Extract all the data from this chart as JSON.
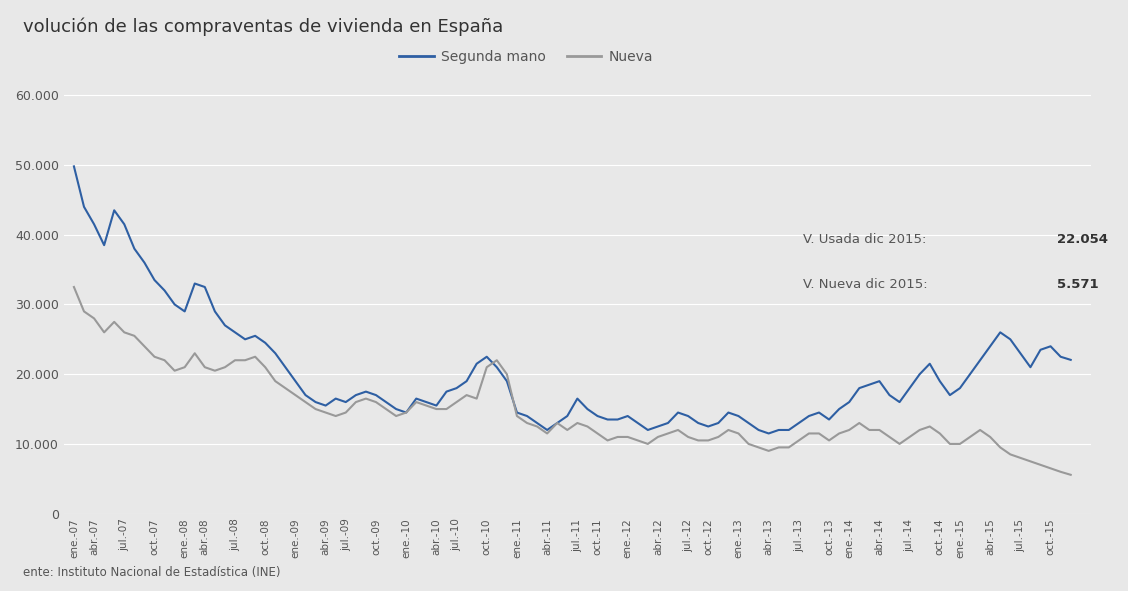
{
  "title": "volución de las compraventas de vivienda en España",
  "source_text": "ente: Instituto Nacional de Estadística (INE)",
  "bg_color": "#e8e8e8",
  "plot_bg_color": "#e8e8e8",
  "segunda_mano_color": "#2e5fa3",
  "nueva_color": "#999999",
  "ylim": [
    0,
    65000
  ],
  "yticks": [
    0,
    10000,
    20000,
    30000,
    40000,
    50000,
    60000
  ],
  "ytick_labels": [
    "0",
    "10.000",
    "20.000",
    "30.000",
    "40.000",
    "50.000",
    "60.000"
  ],
  "annotation_usada": "V. Usada dic 2015: ",
  "annotation_usada_bold": "22.054",
  "annotation_nueva": "V. Nueva dic 2015: ",
  "annotation_nueva_bold": "5.571",
  "legend_segunda": "Segunda mano",
  "legend_nueva": "Nueva",
  "segunda_mano": [
    49800,
    44000,
    41500,
    38500,
    43500,
    41500,
    38000,
    36000,
    33500,
    32000,
    30000,
    29000,
    33000,
    32500,
    29000,
    27000,
    26000,
    25000,
    25500,
    24500,
    23000,
    21000,
    19000,
    17000,
    16000,
    15500,
    16500,
    16000,
    17000,
    17500,
    17000,
    16000,
    15000,
    14500,
    16500,
    16000,
    15500,
    17500,
    18000,
    19000,
    21500,
    22500,
    21000,
    19000,
    14500,
    14000,
    13000,
    12000,
    13000,
    14000,
    16500,
    15000,
    14000,
    13500,
    13500,
    14000,
    13000,
    12000,
    12500,
    13000,
    14500,
    14000,
    13000,
    12500,
    13000,
    14500,
    14000,
    13000,
    12000,
    11500,
    12000,
    12000,
    13000,
    14000,
    14500,
    13500,
    15000,
    16000,
    18000,
    18500,
    19000,
    17000,
    16000,
    18000,
    20000,
    21500,
    19000,
    17000,
    18000,
    20000,
    22000,
    24000,
    26000,
    25000,
    23000,
    21000,
    23500,
    24000,
    22500,
    22054
  ],
  "nueva": [
    32500,
    29000,
    28000,
    26000,
    27500,
    26000,
    25500,
    24000,
    22500,
    22000,
    20500,
    21000,
    23000,
    21000,
    20500,
    21000,
    22000,
    22000,
    22500,
    21000,
    19000,
    18000,
    17000,
    16000,
    15000,
    14500,
    14000,
    14500,
    16000,
    16500,
    16000,
    15000,
    14000,
    14500,
    16000,
    15500,
    15000,
    15000,
    16000,
    17000,
    16500,
    21000,
    22000,
    20000,
    14000,
    13000,
    12500,
    11500,
    13000,
    12000,
    13000,
    12500,
    11500,
    10500,
    11000,
    11000,
    10500,
    10000,
    11000,
    11500,
    12000,
    11000,
    10500,
    10500,
    11000,
    12000,
    11500,
    10000,
    9500,
    9000,
    9500,
    9500,
    10500,
    11500,
    11500,
    10500,
    11500,
    12000,
    13000,
    12000,
    12000,
    11000,
    10000,
    11000,
    12000,
    12500,
    11500,
    10000,
    10000,
    11000,
    12000,
    11000,
    9500,
    8500,
    8000,
    7500,
    7000,
    6500,
    6000,
    5571
  ],
  "x_tick_labels": [
    "ene.-07",
    "abr.-07",
    "jul.-07",
    "oct.-07",
    "ene.-08",
    "abr.-08",
    "jul.-08",
    "oct.-08",
    "ene.-09",
    "abr.-09",
    "jul.-09",
    "oct.-09",
    "ene.-10",
    "abr.-10",
    "jul.-10",
    "oct.-10",
    "ene.-11",
    "abr.-11",
    "jul.-11",
    "oct.-11",
    "ene.-12",
    "abr.-12",
    "jul.-12",
    "oct.-12",
    "ene.-13",
    "abr.-13",
    "jul.-13",
    "oct.-13",
    "ene.-14",
    "abr.-14",
    "jul.-14",
    "oct.-14",
    "ene.-15",
    "abr.-15",
    "jul.-15",
    "oct.-15"
  ]
}
